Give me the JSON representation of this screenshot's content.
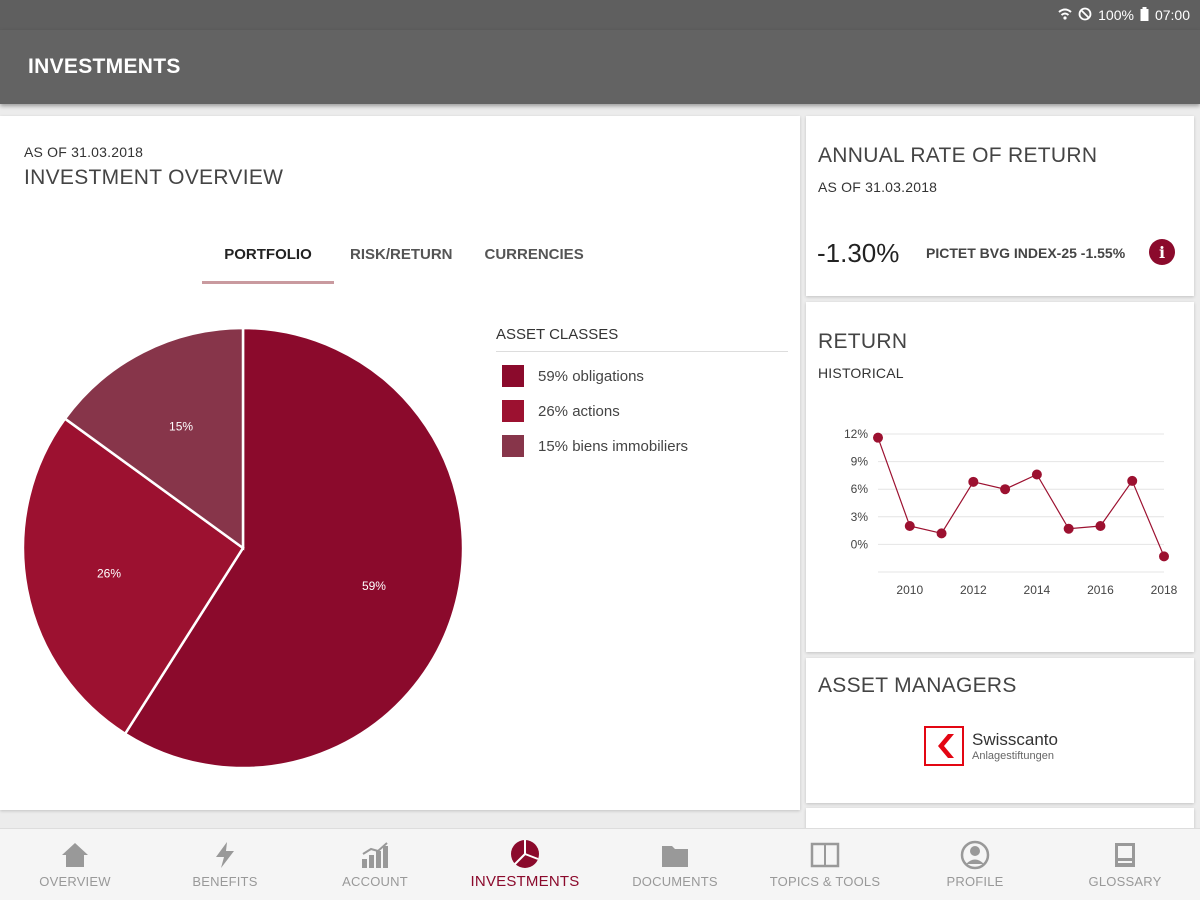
{
  "status_bar": {
    "battery": "100%",
    "time": "07:00"
  },
  "app_bar": {
    "title": "INVESTMENTS"
  },
  "overview": {
    "as_of": "AS OF 31.03.2018",
    "title": "INVESTMENT OVERVIEW",
    "tabs": [
      {
        "label": "PORTFOLIO",
        "active": true
      },
      {
        "label": "RISK/RETURN",
        "active": false
      },
      {
        "label": "CURRENCIES",
        "active": false
      }
    ],
    "legend_title": "ASSET CLASSES",
    "legend": [
      {
        "label": "59% obligations",
        "color": "#8b0a2c"
      },
      {
        "label": "26% actions",
        "color": "#9c1130"
      },
      {
        "label": "15% biens immobiliers",
        "color": "#87354a"
      }
    ]
  },
  "chart_data": [
    {
      "type": "pie",
      "title": "ASSET CLASSES",
      "categories": [
        "obligations",
        "actions",
        "biens immobiliers"
      ],
      "values": [
        59,
        26,
        15
      ],
      "labels": [
        "59%",
        "26%",
        "15%"
      ],
      "colors": [
        "#8b0a2c",
        "#9c1130",
        "#87354a"
      ]
    },
    {
      "type": "line",
      "title": "HISTORICAL",
      "x": [
        2009,
        2010,
        2011,
        2012,
        2013,
        2014,
        2015,
        2016,
        2017,
        2018
      ],
      "values": [
        11.6,
        2.0,
        1.2,
        6.8,
        6.0,
        7.6,
        1.7,
        2.0,
        6.9,
        -1.3
      ],
      "ylim": [
        -3,
        12
      ],
      "yticks": [
        0,
        3,
        6,
        9,
        12
      ],
      "ytick_labels": [
        "0%",
        "3%",
        "6%",
        "9%",
        "12%"
      ],
      "xticks": [
        2010,
        2012,
        2014,
        2016,
        2018
      ],
      "xtick_labels": [
        "2010",
        "2012",
        "2014",
        "2016",
        "2018"
      ],
      "color": "#9c1130"
    }
  ],
  "annual_return": {
    "title": "ANNUAL RATE OF RETURN",
    "as_of": "AS OF 31.03.2018",
    "value": "-1.30%",
    "benchmark": "PICTET BVG INDEX-25 -1.55%",
    "info_glyph": "i"
  },
  "return_card": {
    "title": "RETURN",
    "subtitle": "HISTORICAL"
  },
  "asset_managers": {
    "title": "ASSET MANAGERS",
    "logo_name": "Swisscanto",
    "logo_sub": "Anlagestiftungen"
  },
  "nav": [
    {
      "label": "OVERVIEW",
      "icon": "home-icon",
      "active": false
    },
    {
      "label": "BENEFITS",
      "icon": "lightning-icon",
      "active": false
    },
    {
      "label": "ACCOUNT",
      "icon": "chart-icon",
      "active": false
    },
    {
      "label": "INVESTMENTS",
      "icon": "pie-icon",
      "active": true
    },
    {
      "label": "DOCUMENTS",
      "icon": "folder-icon",
      "active": false
    },
    {
      "label": "TOPICS & TOOLS",
      "icon": "book-icon",
      "active": false
    },
    {
      "label": "PROFILE",
      "icon": "profile-icon",
      "active": false
    },
    {
      "label": "GLOSSARY",
      "icon": "glossary-icon",
      "active": false
    }
  ]
}
